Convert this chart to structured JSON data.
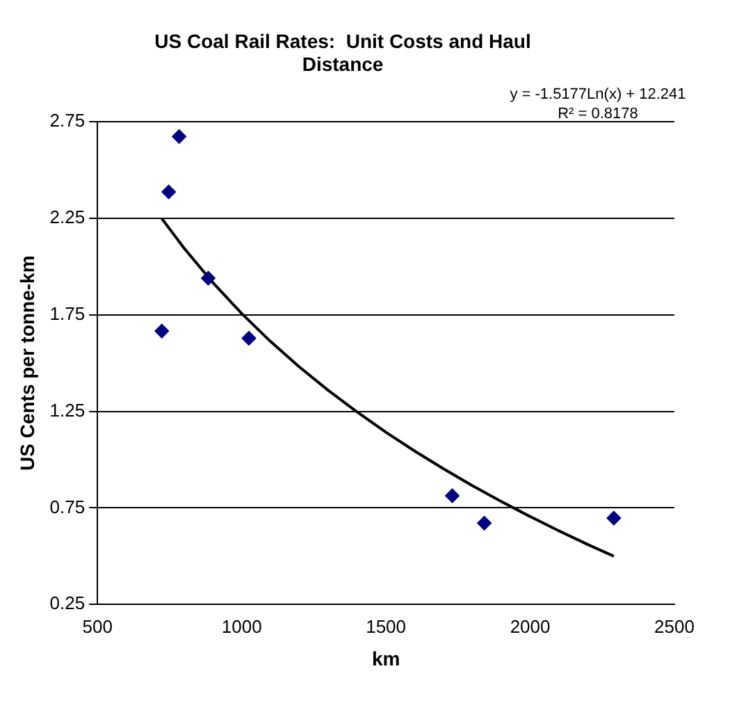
{
  "chart_data": {
    "type": "scatter",
    "title": "US Coal Rail Rates:  Unit Costs and Haul Distance",
    "xlabel": "km",
    "ylabel": "US Cents per tonne-km",
    "annotations": [
      "y = -1.5177Ln(x) + 12.241",
      "R² = 0.8178"
    ],
    "xlim": [
      500,
      2500
    ],
    "xticks": [
      500,
      1000,
      1500,
      2000,
      2500
    ],
    "ylim": [
      0.25,
      2.75
    ],
    "yticks": [
      0.25,
      0.75,
      1.25,
      1.75,
      2.25,
      2.75
    ],
    "grid": "y",
    "legend": false,
    "marker": "diamond",
    "series": [
      {
        "color": "#000080",
        "x": [
          723,
          747,
          783,
          884,
          1025,
          1730,
          1841,
          2290
        ],
        "values": [
          1.666,
          2.387,
          2.674,
          1.94,
          1.629,
          0.813,
          0.671,
          0.697
        ]
      },
      {
        "type": "line",
        "color": "#000000",
        "marker": "none",
        "x": [
          723,
          800,
          900,
          1000,
          1100,
          1200,
          1300,
          1400,
          1500,
          1600,
          1700,
          1800,
          1900,
          2000,
          2100,
          2200,
          2290
        ],
        "values": [
          2.249,
          2.096,
          1.917,
          1.757,
          1.612,
          1.48,
          1.359,
          1.247,
          1.142,
          1.044,
          0.952,
          0.865,
          0.783,
          0.705,
          0.631,
          0.56,
          0.5
        ]
      }
    ]
  }
}
